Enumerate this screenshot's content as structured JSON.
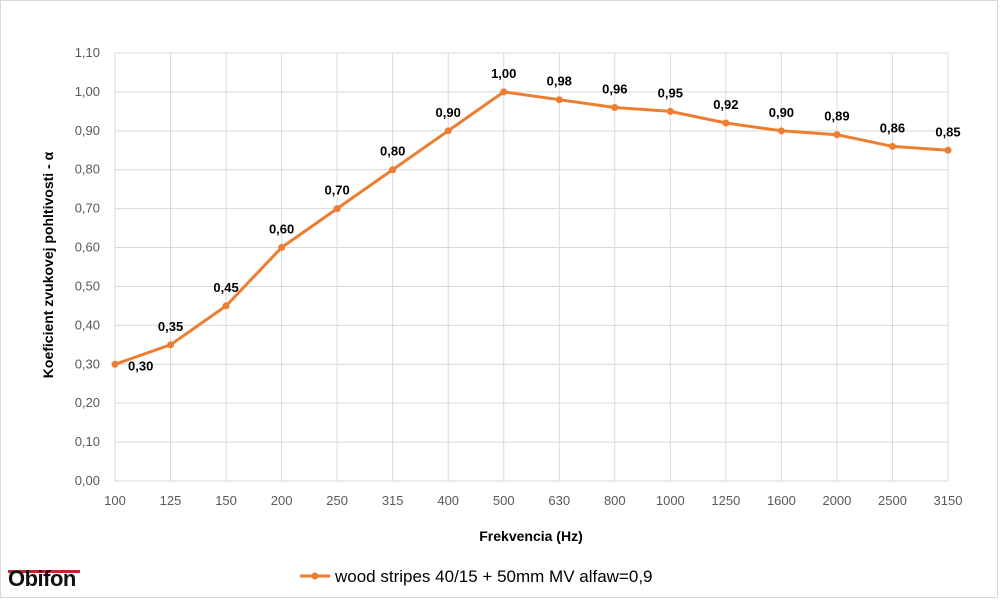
{
  "brand": {
    "logo_text": "Obifon",
    "accent_color": "#c0282d"
  },
  "chart_data": {
    "type": "line",
    "categories": [
      "100",
      "125",
      "150",
      "200",
      "250",
      "315",
      "400",
      "500",
      "630",
      "800",
      "1000",
      "1250",
      "1600",
      "2000",
      "2500",
      "3150"
    ],
    "series": [
      {
        "name": "wood stripes 40/15 + 50mm MV alfaw=0,9",
        "color": "#ed7d31",
        "values": [
          0.3,
          0.35,
          0.45,
          0.6,
          0.7,
          0.8,
          0.9,
          1.0,
          0.98,
          0.96,
          0.95,
          0.92,
          0.9,
          0.89,
          0.86,
          0.85
        ],
        "labels": [
          "0,30",
          "0,35",
          "0,45",
          "0,60",
          "0,70",
          "0,80",
          "0,90",
          "1,00",
          "0,98",
          "0,96",
          "0,95",
          "0,92",
          "0,90",
          "0,89",
          "0,86",
          "0,85"
        ]
      }
    ],
    "xlabel": "Frekvencia (Hz)",
    "ylabel": "Koeficient zvukovej pohltivosti - α",
    "ylim": [
      0,
      1.1
    ],
    "yticks": [
      "0,00",
      "0,10",
      "0,20",
      "0,30",
      "0,40",
      "0,50",
      "0,60",
      "0,70",
      "0,80",
      "0,90",
      "1,00",
      "1,10"
    ],
    "grid": true,
    "legend_position": "bottom"
  }
}
